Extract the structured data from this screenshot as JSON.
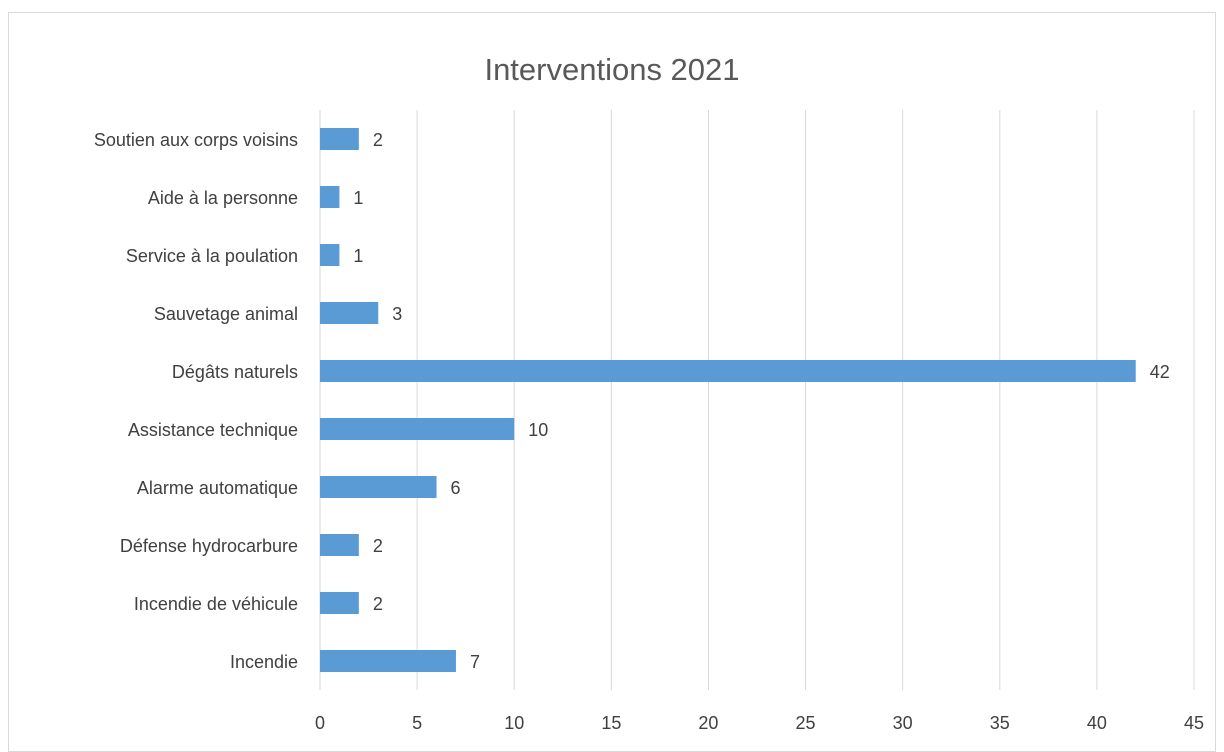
{
  "chart_data": {
    "type": "bar",
    "orientation": "horizontal",
    "title": "Interventions 2021",
    "categories": [
      "Soutien aux corps voisins",
      "Aide à la personne",
      "Service à la poulation",
      "Sauvetage animal",
      "Dégâts naturels",
      "Assistance technique",
      "Alarme automatique",
      "Défense hydrocarbure",
      "Incendie de véhicule",
      "Incendie"
    ],
    "values": [
      2,
      1,
      1,
      3,
      42,
      10,
      6,
      2,
      2,
      7
    ],
    "data_labels": [
      "2",
      "1",
      "1",
      "3",
      "42",
      "10",
      "6",
      "2",
      "2",
      "7"
    ],
    "xlim": [
      0,
      45
    ],
    "x_ticks": [
      "0",
      "5",
      "10",
      "15",
      "20",
      "25",
      "30",
      "35",
      "40",
      "45"
    ],
    "grid": "vertical",
    "legend": "none",
    "colors": {
      "bar": "#5b9bd5",
      "grid": "#d9d9d9",
      "text": "#404040",
      "title": "#595959"
    }
  }
}
